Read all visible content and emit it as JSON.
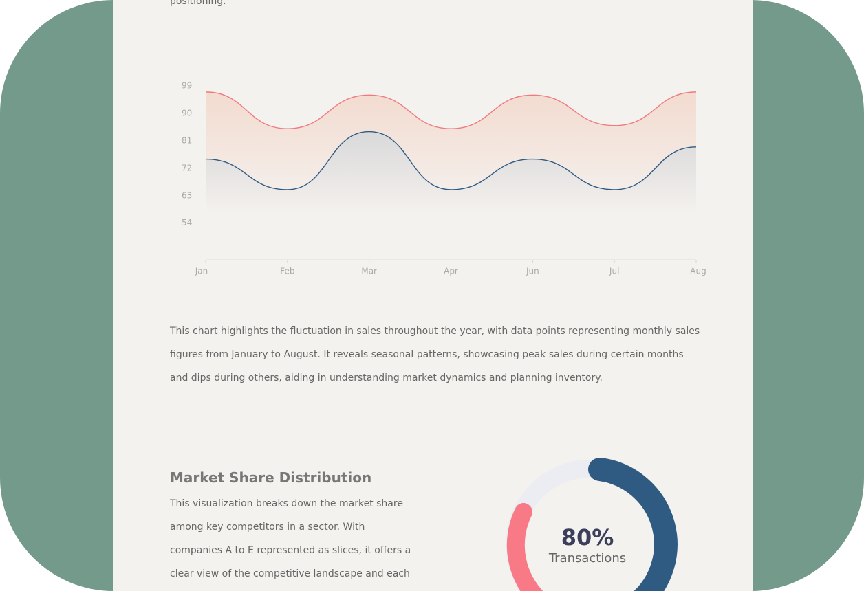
{
  "intro_tail": "positioning.",
  "chart_data": {
    "type": "line",
    "categories": [
      "Jan",
      "Feb",
      "Mar",
      "Apr",
      "Jun",
      "Jul",
      "Aug"
    ],
    "series": [
      {
        "color": "#f07a7e",
        "values": [
          97,
          85,
          96,
          85,
          96,
          86,
          97
        ]
      },
      {
        "color": "#2f5a82",
        "values": [
          75,
          65,
          84,
          65,
          75,
          65,
          79
        ]
      }
    ],
    "ylim": [
      42,
      99
    ],
    "yticks": [
      99,
      90,
      81,
      72,
      63,
      54
    ],
    "grid": false
  },
  "chart_description": [
    "This chart highlights the fluctuation in sales throughout the year, with data points representing monthly sales",
    "figures from January to August. It reveals seasonal patterns, showcasing peak sales during certain months",
    "and dips during others, aiding in understanding market dynamics and planning inventory."
  ],
  "market_share": {
    "title": "Market Share Distribution",
    "description": [
      "This visualization breaks down the market share",
      "among key competitors in a sector. With",
      "companies A to E represented as slices, it offers a",
      "clear view of the competitive landscape and each"
    ],
    "donut_value": "80%",
    "donut_label": "Transactions"
  }
}
